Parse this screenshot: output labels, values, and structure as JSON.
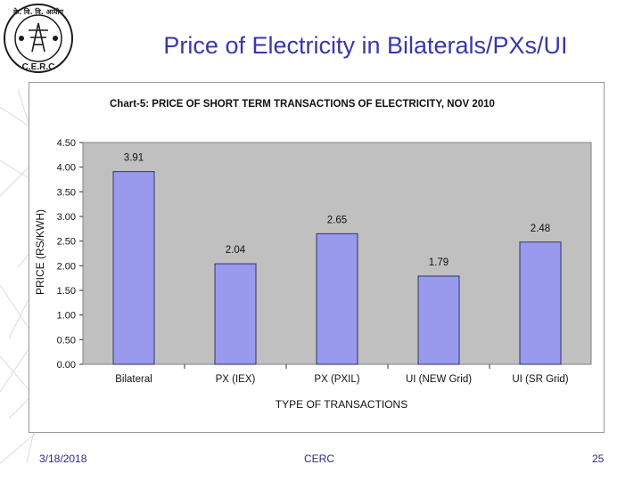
{
  "slide": {
    "title": "Price of Electricity in Bilaterals/PXs/UI",
    "footer_date": "3/18/2018",
    "footer_org": "CERC",
    "footer_page": "25"
  },
  "logo": {
    "top_text": "के. वि. वि. आयोग",
    "bottom_text": "C.E.R.C",
    "color": "#1a1a1a"
  },
  "colors": {
    "title": "#3a37a8",
    "plot_bg": "#c0c0c0",
    "bar_fill": "#9999ee",
    "bar_stroke": "#333366",
    "footer": "#2a2a8a"
  },
  "chart_data": {
    "type": "bar",
    "title": "Chart-5: PRICE OF SHORT TERM TRANSACTIONS OF ELECTRICITY, NOV 2010",
    "xlabel": "TYPE OF TRANSACTIONS",
    "ylabel": "PRICE (RS/KWH)",
    "categories": [
      "Bilateral",
      "PX (IEX)",
      "PX (PXIL)",
      "UI (NEW Grid)",
      "UI (SR Grid)"
    ],
    "values": [
      3.91,
      2.04,
      2.65,
      1.79,
      2.48
    ],
    "data_labels": [
      "3.91",
      "2.04",
      "2.65",
      "1.79",
      "2.48"
    ],
    "ylim": [
      0,
      4.5
    ],
    "yticks": [
      "0.00",
      "0.50",
      "1.00",
      "1.50",
      "2.00",
      "2.50",
      "3.00",
      "3.50",
      "4.00",
      "4.50"
    ],
    "grid": false,
    "legend": "none"
  }
}
